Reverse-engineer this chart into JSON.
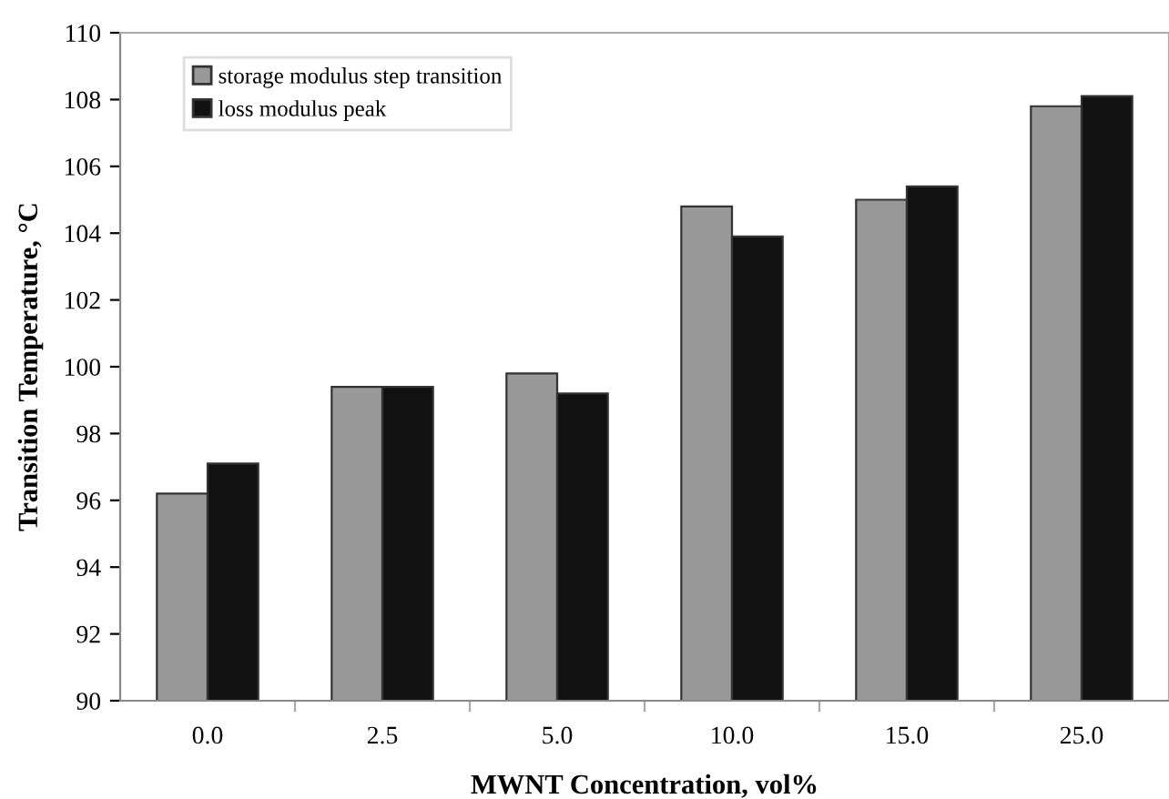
{
  "chart_data": {
    "type": "bar",
    "xlabel": "MWNT Concentration, vol%",
    "ylabel": "Transition Temperature, °C",
    "categories": [
      "0.0",
      "2.5",
      "5.0",
      "10.0",
      "15.0",
      "25.0"
    ],
    "series": [
      {
        "name": "storage modulus step transition",
        "color": "#999999",
        "values": [
          96.2,
          99.4,
          99.8,
          104.8,
          105.0,
          107.8
        ]
      },
      {
        "name": "loss modulus peak",
        "color": "#111111",
        "values": [
          97.1,
          99.4,
          99.2,
          103.9,
          105.4,
          108.1
        ]
      }
    ],
    "ylim": [
      90,
      110
    ],
    "yticks": [
      90,
      92,
      94,
      96,
      98,
      100,
      102,
      104,
      106,
      108,
      110
    ],
    "grid": false,
    "legend": "top left"
  }
}
